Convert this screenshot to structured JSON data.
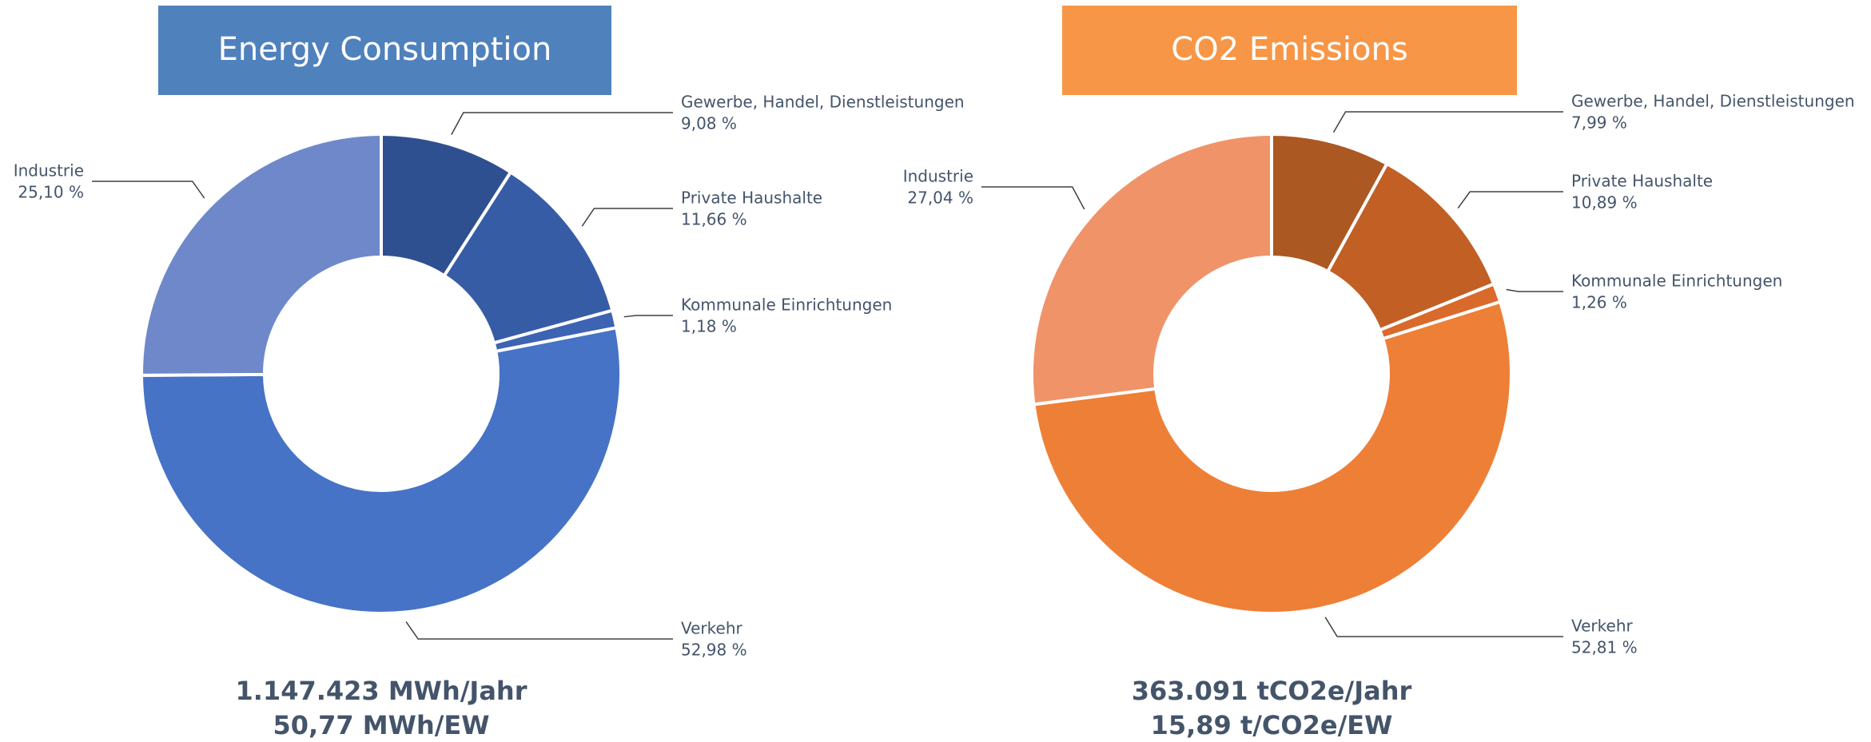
{
  "chart_data": [
    {
      "type": "donut",
      "title": "Energy Consumption",
      "title_color": "#4f81bd",
      "categories": [
        "Gewerbe, Handel, Dienstleistungen",
        "Private Haushalte",
        "Kommunale Einrichtungen",
        "Verkehr",
        "Industrie"
      ],
      "values": [
        9.08,
        11.66,
        1.18,
        52.98,
        25.1
      ],
      "value_labels": [
        "9,08 %",
        "11,66 %",
        "1,18 %",
        "52,98 %",
        "25,10 %"
      ],
      "colors": [
        "#2f5090",
        "#375ca6",
        "#3d63b3",
        "#4673c5",
        "#6e88ca"
      ],
      "annotations": [
        "1.147.423 MWh/Jahr",
        "50,77 MWh/EW"
      ]
    },
    {
      "type": "donut",
      "title": "CO2 Emissions",
      "title_color": "#f79646",
      "categories": [
        "Gewerbe, Handel, Dienstleistungen",
        "Private Haushalte",
        "Kommunale Einrichtungen",
        "Verkehr",
        "Industrie"
      ],
      "values": [
        7.99,
        10.89,
        1.26,
        52.81,
        27.04
      ],
      "value_labels": [
        "7,99 %",
        "10,89 %",
        "1,26 %",
        "52,81 %",
        "27,04 %"
      ],
      "colors": [
        "#ab5822",
        "#c15f25",
        "#d96a2b",
        "#ee7f36",
        "#f09369"
      ],
      "annotations": [
        "363.091 tCO2e/Jahr",
        "15,89 t/CO2e/EW"
      ]
    }
  ]
}
